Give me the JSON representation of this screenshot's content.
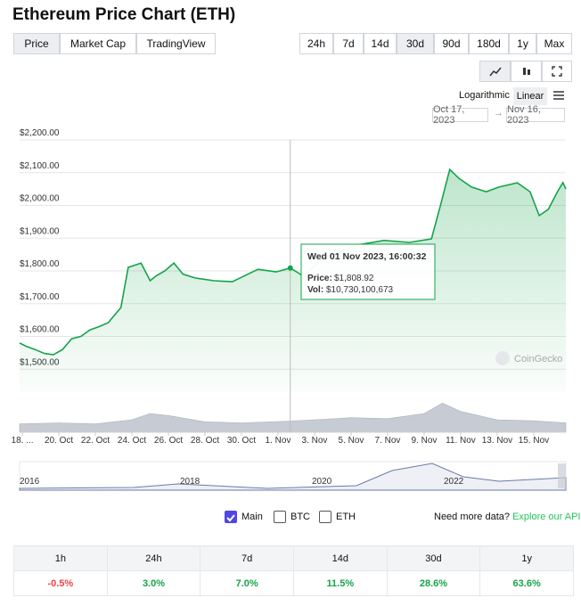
{
  "header": {
    "title": "Ethereum Price Chart (ETH)"
  },
  "tabs": [
    "Price",
    "Market Cap",
    "TradingView"
  ],
  "ranges": [
    "24h",
    "7d",
    "14d",
    "30d",
    "90d",
    "180d",
    "1y",
    "Max"
  ],
  "scale_options": [
    "Logarithmic",
    "Linear"
  ],
  "date_range": {
    "from": "Oct 17, 2023",
    "to": "Nov 16, 2023"
  },
  "chart_data": {
    "type": "line",
    "color": "#16a34a",
    "x": [
      0.85,
      1.2,
      1.7,
      2.2,
      2.7,
      3.2,
      3.7,
      4.2,
      4.7,
      5.2,
      5.7,
      6.4,
      6.8,
      7.5,
      8.0,
      8.3,
      8.8,
      9.3,
      9.8,
      10.5,
      11.5,
      12.5,
      13.9,
      14.9,
      15.67,
      16.4,
      17.4,
      18.3,
      19.3,
      20.8,
      22.2,
      23.4,
      23.9,
      24.4,
      24.9,
      25.6,
      26.4,
      27.1,
      28.1,
      28.8,
      29.3,
      29.8,
      30.3,
      30.6,
      30.76
    ],
    "values": [
      1580,
      1570,
      1560,
      1548,
      1544,
      1560,
      1593,
      1600,
      1620,
      1630,
      1642,
      1688,
      1811,
      1824,
      1770,
      1784,
      1800,
      1824,
      1790,
      1778,
      1770,
      1767,
      1805,
      1797,
      1808.92,
      1784,
      1838,
      1857,
      1879,
      1893,
      1887,
      1898,
      2001,
      2110,
      2083,
      2056,
      2042,
      2056,
      2069,
      2042,
      1969,
      1988,
      2042,
      2070,
      2050
    ],
    "ylim": [
      1430,
      2200
    ],
    "yticks": [
      {
        "value": 1500,
        "label": "$1,500.00"
      },
      {
        "value": 1600,
        "label": "$1,600.00"
      },
      {
        "value": 1700,
        "label": "$1,700.00"
      },
      {
        "value": 1800,
        "label": "$1,800.00"
      },
      {
        "value": 1900,
        "label": "$1,900.00"
      },
      {
        "value": 2000,
        "label": "$2,000.00"
      },
      {
        "value": 2100,
        "label": "$2,100.00"
      },
      {
        "value": 2200,
        "label": "$2,200.00"
      }
    ],
    "xlim": [
      0.85,
      30.76
    ],
    "xticks": [
      {
        "value": 1,
        "label": "18. ..."
      },
      {
        "value": 3,
        "label": "20. Oct"
      },
      {
        "value": 5,
        "label": "22. Oct"
      },
      {
        "value": 7,
        "label": "24. Oct"
      },
      {
        "value": 9,
        "label": "26. Oct"
      },
      {
        "value": 11,
        "label": "28. Oct"
      },
      {
        "value": 13,
        "label": "30. Oct"
      },
      {
        "value": 15,
        "label": "1. Nov"
      },
      {
        "value": 17,
        "label": "3. Nov"
      },
      {
        "value": 19,
        "label": "5. Nov"
      },
      {
        "value": 21,
        "label": "7. Nov"
      },
      {
        "value": 23,
        "label": "9. Nov"
      },
      {
        "value": 25,
        "label": "11. Nov"
      },
      {
        "value": 27,
        "label": "13. Nov"
      },
      {
        "value": 29,
        "label": "15. Nov"
      }
    ],
    "volume": {
      "x": [
        0.85,
        3,
        5,
        7,
        8,
        9,
        11,
        13,
        15.67,
        17,
        19,
        21,
        23,
        24,
        25,
        27,
        29,
        30.76
      ],
      "values": [
        8000000000,
        9000000000,
        8000000000,
        12000000000,
        18000000000,
        16000000000,
        10000000000,
        9000000000,
        10730100673,
        12000000000,
        14000000000,
        13000000000,
        18000000000,
        28000000000,
        20000000000,
        12000000000,
        11000000000,
        9000000000
      ],
      "color": "#c7cbd3"
    },
    "y2lim": [
      0,
      30000000000
    ],
    "tooltip": {
      "index": 24,
      "date": "Wed 01 Nov 2023, 16:00:32",
      "price_label": "Price:",
      "price": "$1,808.92",
      "vol_label": "Vol:",
      "vol": "$10,730,100,673"
    },
    "watermark": "CoinGecko"
  },
  "navigator": {
    "years": [
      "2016",
      "2018",
      "2020",
      "2022"
    ]
  },
  "compare": [
    "Main",
    "BTC",
    "ETH"
  ],
  "api": {
    "text": "Need more data?",
    "link": "Explore our API"
  },
  "changes": [
    {
      "label": "1h",
      "value": "-0.5%"
    },
    {
      "label": "24h",
      "value": "3.0%"
    },
    {
      "label": "7d",
      "value": "7.0%"
    },
    {
      "label": "14d",
      "value": "11.5%"
    },
    {
      "label": "30d",
      "value": "28.6%"
    },
    {
      "label": "1y",
      "value": "63.6%"
    }
  ]
}
